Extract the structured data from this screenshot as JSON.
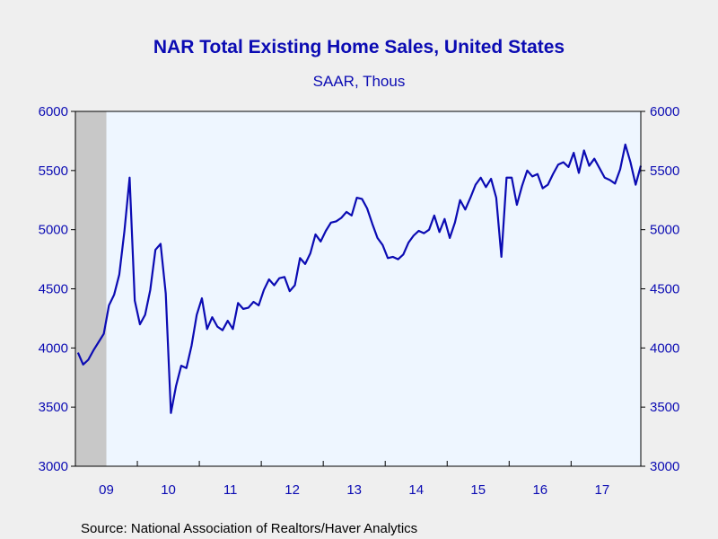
{
  "chart_data": {
    "type": "line",
    "title": "NAR Total Existing Home Sales, United States",
    "subtitle": "SAAR, Thous",
    "source": "Source:  National Association of Realtors/Haver Analytics",
    "x_start": "2009-01",
    "x_end": "2017-12",
    "x_tick_labels": [
      {
        "year": 2009,
        "label": "09"
      },
      {
        "year": 2010,
        "label": "10"
      },
      {
        "year": 2011,
        "label": "11"
      },
      {
        "year": 2012,
        "label": "12"
      },
      {
        "year": 2013,
        "label": "13"
      },
      {
        "year": 2014,
        "label": "14"
      },
      {
        "year": 2015,
        "label": "15"
      },
      {
        "year": 2016,
        "label": "16"
      },
      {
        "year": 2017,
        "label": "17"
      }
    ],
    "y_ticks": [
      3000,
      3500,
      4000,
      4500,
      5000,
      5500,
      6000
    ],
    "ylim": [
      3000,
      6000
    ],
    "grid": false,
    "recession_shading": {
      "start": "2009-01",
      "end": "2009-06"
    },
    "series": [
      {
        "values": [
          [
            "2009-01",
            3960
          ],
          [
            "2009-02",
            3860
          ],
          [
            "2009-03",
            3900
          ],
          [
            "2009-04",
            3980
          ],
          [
            "2009-05",
            4050
          ],
          [
            "2009-06",
            4120
          ],
          [
            "2009-07",
            4360
          ],
          [
            "2009-08",
            4450
          ],
          [
            "2009-09",
            4620
          ],
          [
            "2009-10",
            4990
          ],
          [
            "2009-11",
            5440
          ],
          [
            "2009-12",
            4400
          ],
          [
            "2010-01",
            4200
          ],
          [
            "2010-02",
            4280
          ],
          [
            "2010-03",
            4490
          ],
          [
            "2010-04",
            4830
          ],
          [
            "2010-05",
            4880
          ],
          [
            "2010-06",
            4460
          ],
          [
            "2010-07",
            3450
          ],
          [
            "2010-08",
            3680
          ],
          [
            "2010-09",
            3850
          ],
          [
            "2010-10",
            3830
          ],
          [
            "2010-11",
            4020
          ],
          [
            "2010-12",
            4280
          ],
          [
            "2011-01",
            4420
          ],
          [
            "2011-02",
            4160
          ],
          [
            "2011-03",
            4260
          ],
          [
            "2011-04",
            4180
          ],
          [
            "2011-05",
            4150
          ],
          [
            "2011-06",
            4230
          ],
          [
            "2011-07",
            4160
          ],
          [
            "2011-08",
            4380
          ],
          [
            "2011-09",
            4330
          ],
          [
            "2011-10",
            4340
          ],
          [
            "2011-11",
            4390
          ],
          [
            "2011-12",
            4360
          ],
          [
            "2012-01",
            4490
          ],
          [
            "2012-02",
            4580
          ],
          [
            "2012-03",
            4530
          ],
          [
            "2012-04",
            4590
          ],
          [
            "2012-05",
            4600
          ],
          [
            "2012-06",
            4480
          ],
          [
            "2012-07",
            4530
          ],
          [
            "2012-08",
            4760
          ],
          [
            "2012-09",
            4710
          ],
          [
            "2012-10",
            4800
          ],
          [
            "2012-11",
            4960
          ],
          [
            "2012-12",
            4900
          ],
          [
            "2013-01",
            4990
          ],
          [
            "2013-02",
            5060
          ],
          [
            "2013-03",
            5070
          ],
          [
            "2013-04",
            5100
          ],
          [
            "2013-05",
            5150
          ],
          [
            "2013-06",
            5120
          ],
          [
            "2013-07",
            5270
          ],
          [
            "2013-08",
            5260
          ],
          [
            "2013-09",
            5180
          ],
          [
            "2013-10",
            5050
          ],
          [
            "2013-11",
            4930
          ],
          [
            "2013-12",
            4870
          ],
          [
            "2014-01",
            4760
          ],
          [
            "2014-02",
            4770
          ],
          [
            "2014-03",
            4750
          ],
          [
            "2014-04",
            4790
          ],
          [
            "2014-05",
            4890
          ],
          [
            "2014-06",
            4950
          ],
          [
            "2014-07",
            4990
          ],
          [
            "2014-08",
            4970
          ],
          [
            "2014-09",
            5000
          ],
          [
            "2014-10",
            5120
          ],
          [
            "2014-11",
            4980
          ],
          [
            "2014-12",
            5090
          ],
          [
            "2015-01",
            4930
          ],
          [
            "2015-02",
            5060
          ],
          [
            "2015-03",
            5250
          ],
          [
            "2015-04",
            5170
          ],
          [
            "2015-05",
            5270
          ],
          [
            "2015-06",
            5380
          ],
          [
            "2015-07",
            5440
          ],
          [
            "2015-08",
            5360
          ],
          [
            "2015-09",
            5430
          ],
          [
            "2015-10",
            5270
          ],
          [
            "2015-11",
            4770
          ],
          [
            "2015-12",
            5440
          ],
          [
            "2016-01",
            5440
          ],
          [
            "2016-02",
            5210
          ],
          [
            "2016-03",
            5370
          ],
          [
            "2016-04",
            5500
          ],
          [
            "2016-05",
            5450
          ],
          [
            "2016-06",
            5470
          ],
          [
            "2016-07",
            5350
          ],
          [
            "2016-08",
            5380
          ],
          [
            "2016-09",
            5470
          ],
          [
            "2016-10",
            5550
          ],
          [
            "2016-11",
            5570
          ],
          [
            "2016-12",
            5530
          ],
          [
            "2017-01",
            5650
          ],
          [
            "2017-02",
            5480
          ],
          [
            "2017-03",
            5670
          ],
          [
            "2017-04",
            5540
          ],
          [
            "2017-05",
            5600
          ],
          [
            "2017-06",
            5520
          ],
          [
            "2017-07",
            5440
          ],
          [
            "2017-08",
            5420
          ],
          [
            "2017-09",
            5390
          ],
          [
            "2017-10",
            5510
          ],
          [
            "2017-11",
            5720
          ],
          [
            "2017-12",
            5570
          ],
          [
            "2018-01",
            5380
          ],
          [
            "2018-02",
            5540
          ]
        ]
      }
    ]
  },
  "colors": {
    "background": "#efefef",
    "plot_background": "#eef6ff",
    "line": "#0b0bb3",
    "axis": "#000000",
    "text": "#0b0bb3",
    "recession": "#c8c8c8"
  }
}
